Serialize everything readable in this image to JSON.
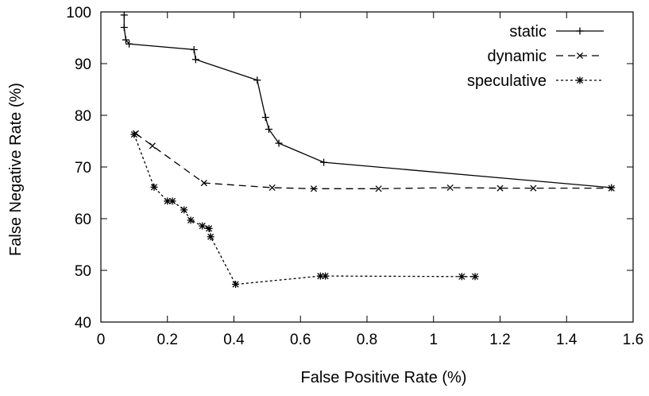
{
  "chart_data": {
    "type": "line",
    "title": "",
    "xlabel": "False Positive Rate (%)",
    "ylabel": "False Negative Rate (%)",
    "xlim": [
      0,
      1.6
    ],
    "ylim": [
      40,
      100
    ],
    "xticks": [
      0,
      0.2,
      0.4,
      0.6,
      0.8,
      1.0,
      1.2,
      1.4,
      1.6
    ],
    "xtick_labels": [
      "0",
      "0.2",
      "0.4",
      "0.6",
      "0.8",
      "1",
      "1.2",
      "1.4",
      "1.6"
    ],
    "yticks": [
      40,
      50,
      60,
      70,
      80,
      90,
      100
    ],
    "ytick_labels": [
      "40",
      "50",
      "60",
      "70",
      "80",
      "90",
      "100"
    ],
    "grid": false,
    "legend_position": "top-right",
    "series": [
      {
        "name": "static",
        "line_style": "solid",
        "marker": "plus",
        "color": "#000000",
        "points": [
          [
            0.07,
            99.4
          ],
          [
            0.07,
            97.0
          ],
          [
            0.075,
            94.6
          ],
          [
            0.085,
            93.8
          ],
          [
            0.28,
            92.7
          ],
          [
            0.285,
            90.8
          ],
          [
            0.47,
            86.8
          ],
          [
            0.495,
            79.6
          ],
          [
            0.505,
            77.3
          ],
          [
            0.535,
            74.6
          ],
          [
            0.67,
            70.9
          ],
          [
            1.535,
            66.0
          ]
        ]
      },
      {
        "name": "dynamic",
        "line_style": "dashed",
        "marker": "cross",
        "color": "#000000",
        "points": [
          [
            0.105,
            76.5
          ],
          [
            0.155,
            74.1
          ],
          [
            0.31,
            66.9
          ],
          [
            0.515,
            66.0
          ],
          [
            0.64,
            65.8
          ],
          [
            0.835,
            65.8
          ],
          [
            1.05,
            66.0
          ],
          [
            1.2,
            65.9
          ],
          [
            1.3,
            65.9
          ],
          [
            1.535,
            65.9
          ]
        ]
      },
      {
        "name": "speculative",
        "line_style": "dotted",
        "marker": "star",
        "color": "#000000",
        "points": [
          [
            0.1,
            76.3
          ],
          [
            0.16,
            66.1
          ],
          [
            0.2,
            63.4
          ],
          [
            0.215,
            63.4
          ],
          [
            0.25,
            61.7
          ],
          [
            0.27,
            59.7
          ],
          [
            0.305,
            58.6
          ],
          [
            0.325,
            58.1
          ],
          [
            0.33,
            56.5
          ],
          [
            0.405,
            47.3
          ],
          [
            0.66,
            48.9
          ],
          [
            0.675,
            48.9
          ],
          [
            1.085,
            48.8
          ],
          [
            1.125,
            48.8
          ]
        ]
      }
    ]
  }
}
